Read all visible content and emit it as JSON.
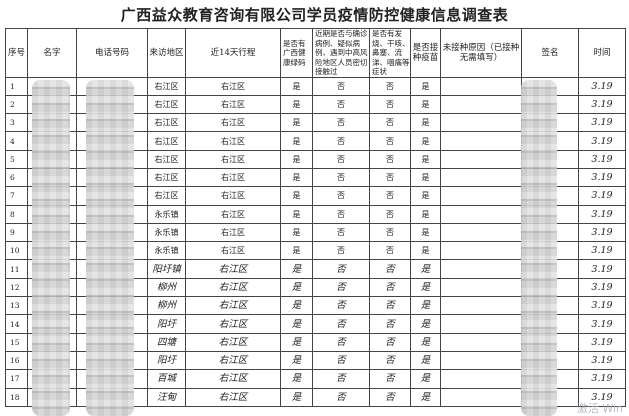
{
  "title": "广西益众教育咨询有限公司学员疫情防控健康信息调查表",
  "headers": [
    "序号",
    "名字",
    "电话号码",
    "来访地区",
    "近14天行程",
    "是否有广西健康绿码",
    "近期是否与确诊病例、疑似病例、遇到中高风险地区人员密切接触过",
    "是否有发烧、干咳、鼻塞、流涕、咽痛等症状",
    "是否接种疫苗",
    "未接种原因（已接种无需填写）",
    "签名",
    "时间"
  ],
  "rows": [
    {
      "no": "1",
      "area": "右江区",
      "trip": "右江区",
      "green": "是",
      "contact": "否",
      "symptom": "否",
      "vacc": "是",
      "time": "3.19"
    },
    {
      "no": "2",
      "area": "右江区",
      "trip": "右江区",
      "green": "是",
      "contact": "否",
      "symptom": "否",
      "vacc": "是",
      "time": "3.19"
    },
    {
      "no": "3",
      "area": "右江区",
      "trip": "右江区",
      "green": "是",
      "contact": "否",
      "symptom": "否",
      "vacc": "是",
      "time": "3.19"
    },
    {
      "no": "4",
      "area": "右江区",
      "trip": "右江区",
      "green": "是",
      "contact": "否",
      "symptom": "否",
      "vacc": "是",
      "time": "3.19"
    },
    {
      "no": "5",
      "area": "右江区",
      "trip": "右江区",
      "green": "是",
      "contact": "否",
      "symptom": "否",
      "vacc": "是",
      "time": "3.19"
    },
    {
      "no": "6",
      "area": "右江区",
      "trip": "右江区",
      "green": "是",
      "contact": "否",
      "symptom": "否",
      "vacc": "是",
      "time": "3.19"
    },
    {
      "no": "7",
      "area": "右江区",
      "trip": "右江区",
      "green": "是",
      "contact": "否",
      "symptom": "否",
      "vacc": "是",
      "time": "3.19"
    },
    {
      "no": "8",
      "area": "永乐镇",
      "trip": "右江区",
      "green": "是",
      "contact": "否",
      "symptom": "否",
      "vacc": "是",
      "time": "3.19"
    },
    {
      "no": "9",
      "area": "永乐镇",
      "trip": "右江区",
      "green": "是",
      "contact": "否",
      "symptom": "否",
      "vacc": "是",
      "time": "3.19"
    },
    {
      "no": "10",
      "area": "永乐镇",
      "trip": "右江区",
      "green": "是",
      "contact": "否",
      "symptom": "否",
      "vacc": "是",
      "time": "3.19"
    },
    {
      "no": "11",
      "area": "阳圩镇",
      "trip": "右江区",
      "green": "是",
      "contact": "否",
      "symptom": "否",
      "vacc": "是",
      "time": "3.19"
    },
    {
      "no": "12",
      "area": "柳州",
      "trip": "右江区",
      "green": "是",
      "contact": "否",
      "symptom": "否",
      "vacc": "是",
      "time": "3.19"
    },
    {
      "no": "13",
      "area": "柳州",
      "trip": "右江区",
      "green": "是",
      "contact": "否",
      "symptom": "否",
      "vacc": "是",
      "time": "3.19"
    },
    {
      "no": "14",
      "area": "阳圩",
      "trip": "右江区",
      "green": "是",
      "contact": "否",
      "symptom": "否",
      "vacc": "是",
      "time": "3.19"
    },
    {
      "no": "15",
      "area": "四塘",
      "trip": "右江区",
      "green": "是",
      "contact": "否",
      "symptom": "否",
      "vacc": "是",
      "time": "3.19"
    },
    {
      "no": "16",
      "area": "阳圩",
      "trip": "右江区",
      "green": "是",
      "contact": "否",
      "symptom": "否",
      "vacc": "是",
      "time": "3.19"
    },
    {
      "no": "17",
      "area": "百城",
      "trip": "右江区",
      "green": "是",
      "contact": "否",
      "symptom": "否",
      "vacc": "是",
      "time": "3.19"
    },
    {
      "no": "18",
      "area": "汪甸",
      "trip": "右江区",
      "green": "是",
      "contact": "否",
      "symptom": "否",
      "vacc": "是",
      "time": "3.19"
    }
  ],
  "watermark": "激活 Win"
}
